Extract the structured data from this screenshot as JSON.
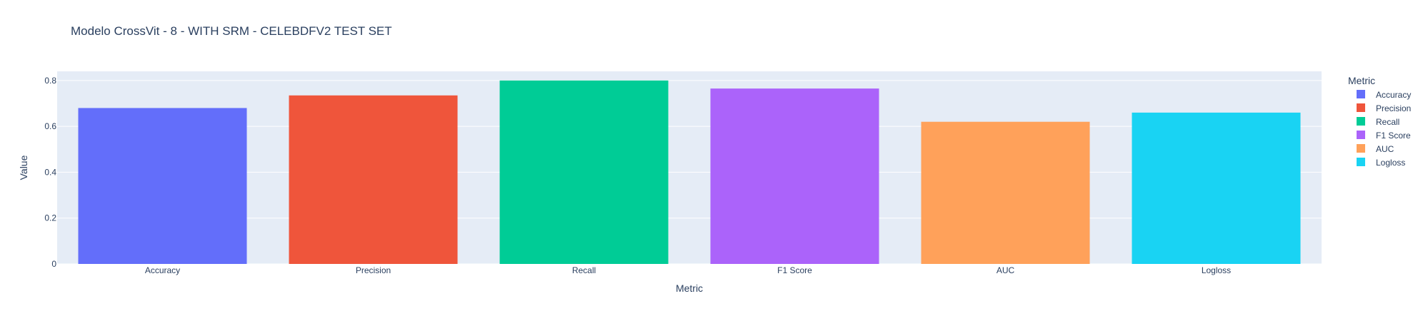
{
  "chart_data": {
    "type": "bar",
    "title": "Modelo CrossVit - 8 - WITH SRM - CELEBDFV2 TEST SET",
    "xlabel": "Metric",
    "ylabel": "Value",
    "categories": [
      "Accuracy",
      "Precision",
      "Recall",
      "F1 Score",
      "AUC",
      "Logloss"
    ],
    "values": [
      0.68,
      0.735,
      0.8,
      0.765,
      0.62,
      0.66
    ],
    "colors": [
      "#636efa",
      "#EF553B",
      "#00cc96",
      "#ab63fa",
      "#FFA15A",
      "#19d3f3"
    ],
    "ylim": [
      0,
      0.84
    ],
    "yticks": [
      0,
      0.2,
      0.4,
      0.6,
      0.8
    ],
    "ytick_labels": [
      "0",
      "0.2",
      "0.4",
      "0.6",
      "0.8"
    ],
    "grid": true,
    "legend": {
      "title": "Metric",
      "placement": "right",
      "entries": [
        "Accuracy",
        "Precision",
        "Recall",
        "F1 Score",
        "AUC",
        "Logloss"
      ]
    },
    "plot_background": "#e5ecf6",
    "gridline_color": "#ffffff"
  }
}
